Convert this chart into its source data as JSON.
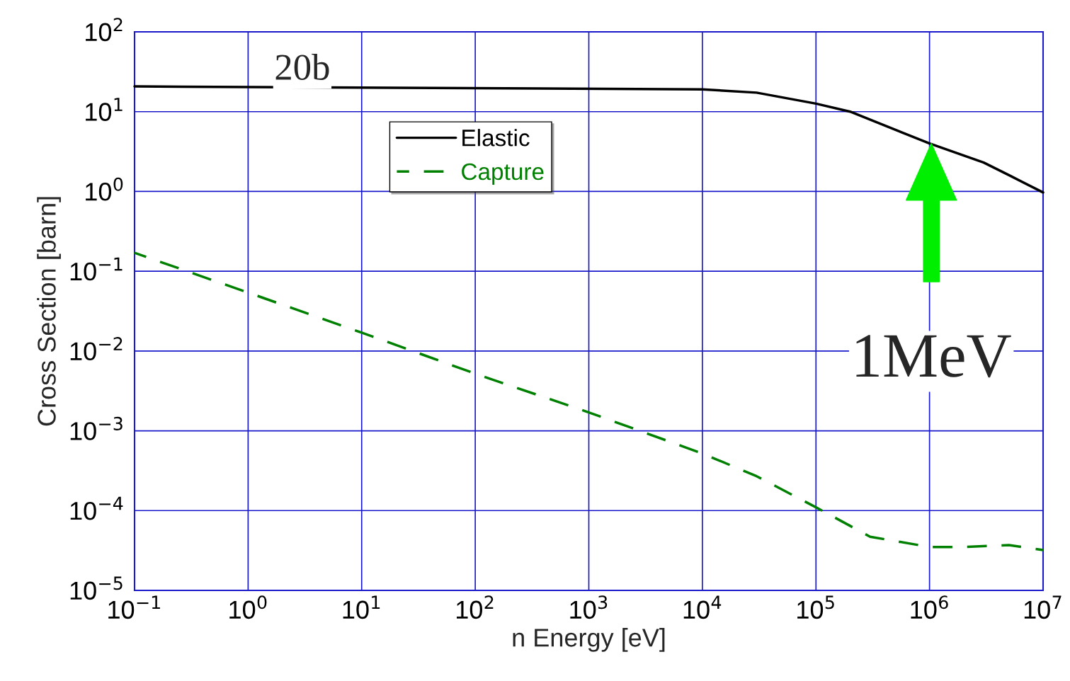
{
  "chart_data": {
    "type": "line",
    "xlabel": "n Energy [eV]",
    "ylabel": "Cross Section [barn]",
    "log": "xy",
    "xlim": [
      0.1,
      10000000
    ],
    "ylim": [
      1e-05,
      100
    ],
    "xticks": [
      {
        "value": 0.1,
        "label": "10$^{−1}$"
      },
      {
        "value": 1,
        "label": "10$^{0}$"
      },
      {
        "value": 10,
        "label": "10$^{1}$"
      },
      {
        "value": 100,
        "label": "10$^{2}$"
      },
      {
        "value": 1000,
        "label": "10$^{3}$"
      },
      {
        "value": 10000,
        "label": "10$^{4}$"
      },
      {
        "value": 100000,
        "label": "10$^{5}$"
      },
      {
        "value": 1000000,
        "label": "10$^{6}$"
      },
      {
        "value": 10000000,
        "label": "10$^{7}$"
      }
    ],
    "yticks": [
      {
        "value": 1e-05,
        "label": "10$^{−5}$"
      },
      {
        "value": 0.0001,
        "label": "10$^{−4}$"
      },
      {
        "value": 0.001,
        "label": "10$^{−3}$"
      },
      {
        "value": 0.01,
        "label": "10$^{−2}$"
      },
      {
        "value": 0.1,
        "label": "10$^{−1}$"
      },
      {
        "value": 1,
        "label": "10$^{0}$"
      },
      {
        "value": 10,
        "label": "10$^{1}$"
      },
      {
        "value": 100,
        "label": "10$^{2}$"
      }
    ],
    "grid": true,
    "legend": "top",
    "marker": "none",
    "series": [
      {
        "name": "Elastic",
        "color": "#000000",
        "line_style": "solid",
        "x": [
          0.1,
          10000,
          30000,
          100000,
          200000,
          1000000,
          3000000,
          5000000,
          10000000
        ],
        "values": [
          20.7,
          19,
          17.3,
          12.6,
          10,
          4.0,
          2.3,
          1.6,
          0.97
        ]
      },
      {
        "name": "Capture",
        "color": "#008000",
        "line_style": "dashed",
        "x": [
          0.1,
          1,
          10,
          100,
          1000,
          10000,
          30000,
          100000,
          300000,
          1000000,
          2000000,
          5000000,
          10000000
        ],
        "values": [
          0.17,
          0.054,
          0.017,
          0.0052,
          0.0017,
          0.00052,
          0.00027,
          0.00011,
          4.7e-05,
          3.5e-05,
          3.5e-05,
          3.7e-05,
          3.2e-05
        ]
      }
    ],
    "annotations": [
      {
        "text": "20b",
        "x": 3,
        "y": 20
      },
      "1MeV"
    ]
  }
}
